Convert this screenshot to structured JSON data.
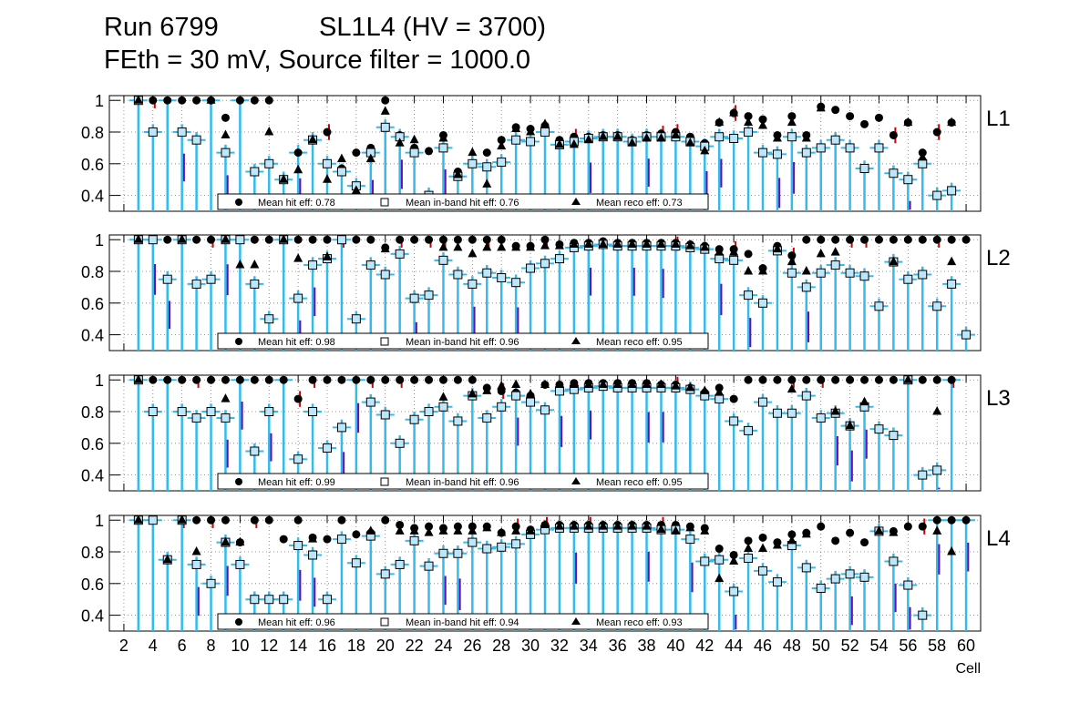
{
  "header": {
    "run": "Run 6799",
    "chamber": "SL1L4 (HV = 3700)",
    "settings": "FEth = 30 mV, Source filter = 1000.0"
  },
  "colors": {
    "errorbar": "#33bbee",
    "inband_fill": "#bfe6f8",
    "spread_red": "#cc0000",
    "spread_purple": "#6a0dad",
    "grid": "#777777"
  },
  "chart_data": {
    "type": "scatter",
    "xlabel": "Cell",
    "xlim": [
      1,
      61
    ],
    "ylim": [
      0.3,
      1.03
    ],
    "x_ticks": [
      2,
      4,
      6,
      8,
      10,
      12,
      14,
      16,
      18,
      20,
      22,
      24,
      26,
      28,
      30,
      32,
      34,
      36,
      38,
      40,
      42,
      44,
      46,
      48,
      50,
      52,
      54,
      56,
      58,
      60
    ],
    "y_ticks": [
      "0.4",
      "0.6",
      "0.8",
      "1"
    ],
    "legend_labels": [
      "Mean hit  eff:",
      "Mean in-band hit eff:",
      "Mean reco eff:"
    ],
    "layers": [
      {
        "label": "L1",
        "mean_hit": "0.78",
        "mean_inband": "0.76",
        "mean_reco": "0.73",
        "cells": [
          3,
          4,
          5,
          6,
          7,
          8,
          9,
          10,
          11,
          12,
          13,
          14,
          15,
          16,
          17,
          18,
          19,
          20,
          21,
          22,
          23,
          24,
          25,
          26,
          27,
          28,
          29,
          30,
          31,
          32,
          33,
          34,
          35,
          36,
          37,
          38,
          39,
          40,
          41,
          42,
          43,
          44,
          45,
          46,
          47,
          48,
          49,
          50,
          51,
          52,
          53,
          54,
          55,
          56,
          57,
          58,
          59
        ],
        "hit": [
          1,
          1,
          1,
          1,
          1,
          1,
          0.89,
          1,
          1,
          1,
          0.5,
          0.67,
          0.75,
          0.8,
          0.57,
          0.67,
          0.7,
          1,
          0.78,
          0.7,
          0.68,
          0.78,
          0.55,
          0.6,
          0.67,
          0.75,
          0.83,
          0.82,
          0.84,
          0.75,
          0.77,
          0.77,
          0.78,
          0.78,
          0.75,
          0.78,
          0.79,
          0.8,
          0.77,
          0.73,
          0.86,
          0.92,
          0.9,
          0.88,
          0.78,
          0.9,
          0.78,
          0.96,
          0.94,
          0.9,
          0.85,
          0.89,
          0.78,
          0.86,
          0.67,
          0.8,
          0.86
        ],
        "inband": [
          1,
          0.8,
          null,
          0.8,
          0.75,
          null,
          0.67,
          null,
          0.55,
          0.6,
          0.5,
          null,
          0.75,
          0.6,
          0.55,
          0.46,
          0.67,
          0.83,
          0.77,
          0.67,
          0.4,
          0.7,
          0.52,
          0.6,
          0.58,
          0.61,
          0.75,
          0.74,
          0.8,
          0.72,
          0.74,
          0.76,
          0.77,
          0.77,
          0.74,
          0.77,
          0.77,
          0.77,
          0.74,
          0.71,
          0.77,
          0.76,
          0.8,
          0.67,
          0.66,
          0.77,
          0.67,
          0.7,
          0.75,
          0.7,
          0.57,
          0.7,
          0.54,
          0.5,
          0.6,
          0.4,
          0.43
        ],
        "reco": [
          1,
          null,
          null,
          null,
          null,
          1,
          0.78,
          null,
          null,
          0.8,
          0.5,
          0.56,
          0.75,
          0.5,
          0.63,
          0.43,
          0.63,
          0.93,
          0.73,
          0.75,
          null,
          0.76,
          0.53,
          0.67,
          0.47,
          0.71,
          0.82,
          0.8,
          0.85,
          0.72,
          0.72,
          0.75,
          0.77,
          0.77,
          0.73,
          0.76,
          0.76,
          0.78,
          0.73,
          0.68,
          0.86,
          0.92,
          0.86,
          0.84,
          0.76,
          0.86,
          0.76,
          0.95,
          null,
          null,
          null,
          null,
          null,
          0.86,
          0.64,
          null,
          0.86
        ]
      },
      {
        "label": "L2",
        "mean_hit": "0.98",
        "mean_inband": "0.96",
        "mean_reco": "0.95",
        "cells": [
          3,
          4,
          5,
          6,
          7,
          8,
          9,
          10,
          11,
          12,
          13,
          14,
          15,
          16,
          17,
          18,
          19,
          20,
          21,
          22,
          23,
          24,
          25,
          26,
          27,
          28,
          29,
          30,
          31,
          32,
          33,
          34,
          35,
          36,
          37,
          38,
          39,
          40,
          41,
          42,
          43,
          44,
          45,
          46,
          47,
          48,
          49,
          50,
          51,
          52,
          53,
          54,
          55,
          56,
          57,
          58,
          59,
          60
        ],
        "hit": [
          1,
          1,
          1,
          1,
          1,
          1,
          1,
          1,
          1,
          1,
          1,
          1,
          1,
          1,
          1,
          1,
          1,
          0.95,
          1,
          1,
          1,
          1,
          1,
          1,
          1,
          1,
          0.96,
          0.96,
          1,
          0.97,
          0.98,
          0.98,
          0.99,
          0.98,
          0.98,
          0.98,
          0.98,
          0.98,
          0.97,
          0.96,
          0.94,
          0.94,
          0.91,
          0.82,
          0.96,
          0.9,
          1,
          1,
          1,
          1,
          1,
          1,
          1,
          1,
          1,
          1,
          1,
          1
        ],
        "inband": [
          1,
          1,
          0.75,
          1,
          0.72,
          0.75,
          1,
          1,
          0.72,
          0.5,
          1,
          0.63,
          0.84,
          0.88,
          1,
          0.5,
          0.84,
          0.78,
          0.91,
          0.63,
          0.65,
          0.87,
          0.78,
          0.72,
          0.79,
          0.76,
          0.73,
          0.82,
          0.85,
          0.88,
          0.95,
          0.96,
          0.97,
          0.96,
          0.96,
          0.96,
          0.96,
          0.96,
          0.95,
          0.94,
          0.88,
          0.87,
          0.65,
          0.6,
          0.93,
          0.79,
          0.7,
          0.79,
          0.84,
          0.79,
          0.77,
          0.58,
          0.86,
          0.75,
          0.78,
          0.58,
          0.72,
          0.4
        ],
        "reco": [
          1,
          null,
          null,
          1,
          null,
          null,
          1,
          0.84,
          0.84,
          null,
          1,
          0.88,
          null,
          0.89,
          null,
          null,
          null,
          0.94,
          null,
          null,
          null,
          0.95,
          0.95,
          0.91,
          0.95,
          0.95,
          0.95,
          0.95,
          0.96,
          0.96,
          0.97,
          0.97,
          0.97,
          0.97,
          0.97,
          0.97,
          0.97,
          0.97,
          0.96,
          0.95,
          0.92,
          0.92,
          0.8,
          0.8,
          0.94,
          0.86,
          0.8,
          0.91,
          0.92,
          null,
          null,
          null,
          0.86,
          null,
          null,
          null,
          0.86,
          null
        ]
      },
      {
        "label": "L3",
        "mean_hit": "0.99",
        "mean_inband": "0.96",
        "mean_reco": "0.95",
        "cells": [
          3,
          4,
          5,
          6,
          7,
          8,
          9,
          10,
          11,
          12,
          13,
          14,
          15,
          16,
          17,
          18,
          19,
          20,
          21,
          22,
          23,
          24,
          25,
          26,
          27,
          28,
          29,
          30,
          31,
          32,
          33,
          34,
          35,
          36,
          37,
          38,
          39,
          40,
          41,
          42,
          43,
          44,
          45,
          46,
          47,
          48,
          49,
          50,
          51,
          52,
          53,
          54,
          55,
          56,
          57,
          58,
          59
        ],
        "hit": [
          1,
          1,
          1,
          1,
          1,
          1,
          1,
          1,
          1,
          1,
          1,
          0.88,
          1,
          1,
          1,
          1,
          1,
          1,
          1,
          1,
          1,
          1,
          1,
          1,
          0.95,
          0.93,
          0.92,
          0.9,
          0.97,
          0.97,
          0.98,
          0.98,
          0.98,
          0.98,
          0.98,
          0.98,
          0.97,
          0.97,
          0.95,
          0.92,
          0.95,
          0.88,
          1,
          1,
          1,
          1,
          1,
          1,
          1,
          1,
          1,
          1,
          1,
          1,
          1,
          1,
          1
        ],
        "inband": [
          1,
          0.8,
          null,
          0.8,
          0.76,
          0.8,
          0.76,
          null,
          0.55,
          0.8,
          null,
          0.5,
          0.8,
          0.57,
          0.7,
          null,
          0.86,
          0.78,
          0.6,
          0.75,
          0.8,
          0.83,
          0.74,
          0.9,
          0.76,
          0.83,
          0.9,
          0.86,
          0.81,
          0.93,
          0.94,
          0.95,
          0.96,
          0.95,
          0.95,
          0.95,
          0.95,
          0.95,
          0.94,
          0.9,
          0.88,
          0.74,
          0.68,
          0.86,
          0.79,
          0.79,
          0.9,
          0.76,
          0.79,
          0.71,
          0.83,
          0.69,
          0.65,
          1,
          0.4,
          0.43,
          null
        ],
        "reco": [
          1,
          null,
          null,
          null,
          null,
          null,
          0.88,
          null,
          null,
          null,
          null,
          null,
          null,
          null,
          null,
          null,
          null,
          null,
          null,
          null,
          null,
          0.89,
          null,
          0.91,
          0.93,
          0.96,
          0.97,
          0.91,
          0.97,
          0.97,
          0.97,
          0.97,
          0.97,
          0.97,
          0.97,
          0.97,
          0.97,
          0.96,
          0.95,
          0.93,
          0.92,
          null,
          null,
          null,
          null,
          0.94,
          null,
          null,
          0.8,
          0.71,
          0.86,
          null,
          null,
          1,
          null,
          0.8,
          null
        ]
      },
      {
        "label": "L4",
        "mean_hit": "0.96",
        "mean_inband": "0.94",
        "mean_reco": "0.93",
        "cells": [
          3,
          4,
          5,
          6,
          7,
          8,
          9,
          10,
          11,
          12,
          13,
          14,
          15,
          16,
          17,
          18,
          19,
          20,
          21,
          22,
          23,
          24,
          25,
          26,
          27,
          28,
          29,
          30,
          31,
          32,
          33,
          34,
          35,
          36,
          37,
          38,
          39,
          40,
          41,
          42,
          43,
          44,
          45,
          46,
          47,
          48,
          49,
          50,
          51,
          52,
          53,
          54,
          55,
          56,
          57,
          58,
          59,
          60
        ],
        "hit": [
          1,
          1,
          0.75,
          1,
          1,
          1,
          1,
          0.86,
          1,
          1,
          0.88,
          1,
          0.89,
          0.88,
          1,
          0.91,
          0.92,
          1,
          0.97,
          0.95,
          0.96,
          0.95,
          0.96,
          0.96,
          0.96,
          0.92,
          0.96,
          0.94,
          0.97,
          0.97,
          0.97,
          0.97,
          0.97,
          0.97,
          0.97,
          0.97,
          0.97,
          0.97,
          0.96,
          0.95,
          0.82,
          0.78,
          0.87,
          0.89,
          0.86,
          0.91,
          0.92,
          0.96,
          0.87,
          0.92,
          0.86,
          0.93,
          0.93,
          0.96,
          0.96,
          1,
          1,
          1
        ],
        "inband": [
          1,
          1,
          0.75,
          1,
          0.72,
          0.6,
          0.86,
          0.72,
          0.5,
          0.5,
          0.5,
          0.84,
          0.78,
          0.5,
          0.88,
          0.73,
          0.9,
          0.66,
          0.72,
          0.87,
          0.71,
          0.79,
          0.79,
          0.86,
          0.82,
          0.83,
          0.85,
          0.91,
          0.94,
          0.95,
          0.95,
          0.95,
          0.95,
          0.95,
          0.95,
          0.95,
          0.94,
          0.94,
          0.88,
          0.74,
          0.75,
          0.55,
          0.76,
          0.68,
          0.61,
          0.84,
          0.7,
          0.57,
          0.63,
          0.66,
          0.64,
          0.93,
          0.74,
          0.59,
          0.4,
          null,
          null,
          null
        ],
        "reco": [
          1,
          null,
          0.75,
          1,
          0.8,
          null,
          0.86,
          0.86,
          null,
          null,
          null,
          null,
          0.88,
          null,
          null,
          null,
          0.93,
          null,
          0.93,
          0.93,
          0.92,
          0.93,
          0.93,
          0.93,
          0.95,
          0.92,
          0.93,
          0.93,
          0.97,
          0.96,
          0.96,
          0.96,
          0.96,
          0.96,
          0.96,
          0.96,
          0.94,
          0.93,
          0.95,
          0.93,
          0.63,
          0.74,
          0.82,
          0.82,
          0.84,
          0.87,
          0.91,
          null,
          null,
          null,
          null,
          0.93,
          0.92,
          null,
          null,
          0.93,
          0.8,
          null
        ]
      }
    ]
  }
}
